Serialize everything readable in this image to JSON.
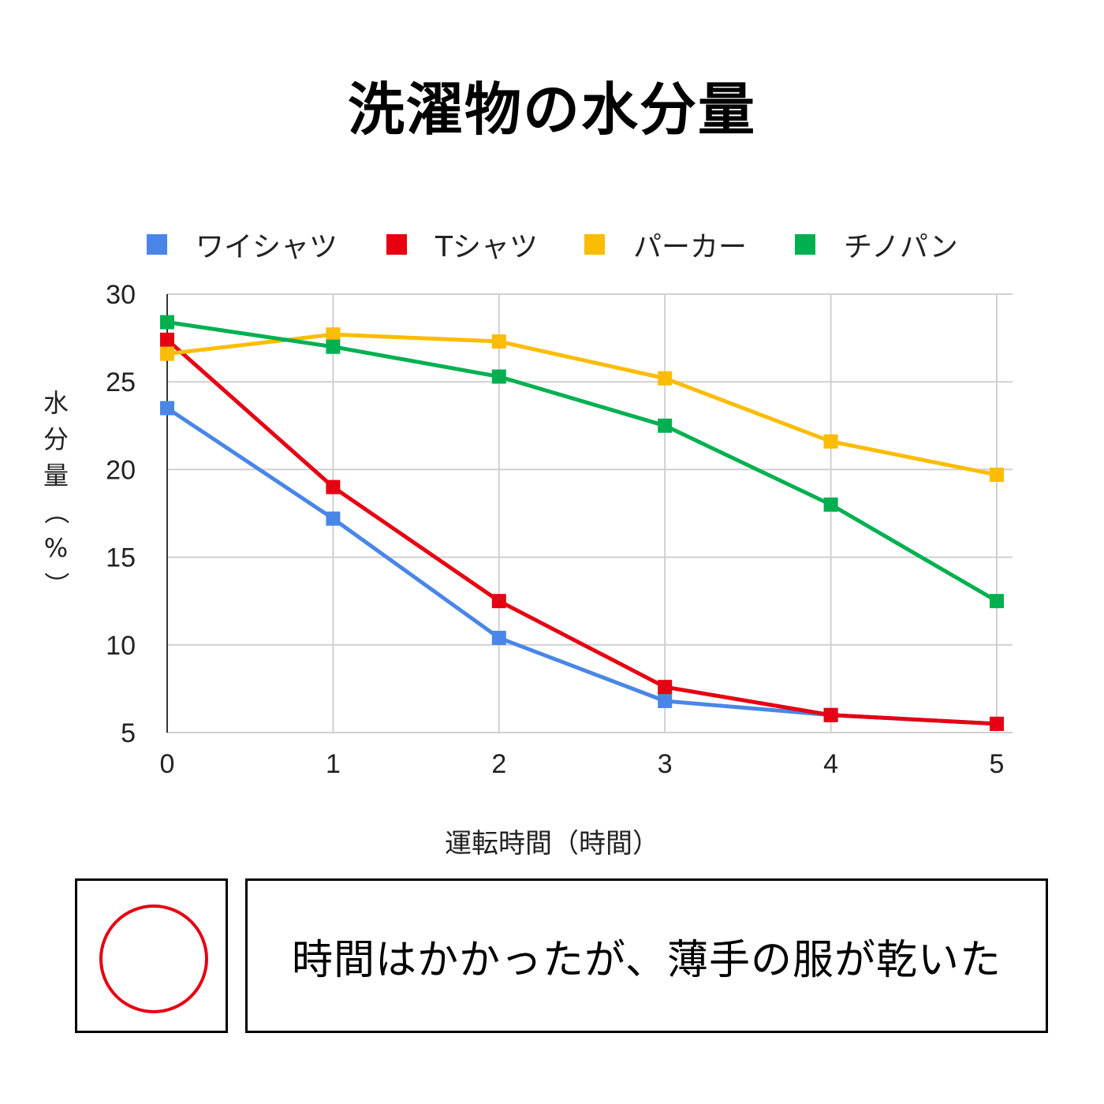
{
  "chart_data": {
    "type": "line",
    "title": "洗濯物の水分量",
    "xlabel": "運転時間（時間）",
    "ylabel": "水分量（%）",
    "x": [
      0,
      1,
      2,
      3,
      4,
      5
    ],
    "xlim": [
      0,
      5
    ],
    "ylim": [
      5,
      30
    ],
    "yticks": [
      5,
      10,
      15,
      20,
      25,
      30
    ],
    "grid": true,
    "legend_position": "top",
    "marker": "square",
    "series": [
      {
        "name": "ワイシャツ",
        "color": "#4a86e8",
        "values": [
          23.5,
          17.2,
          10.4,
          6.8,
          6.0,
          5.5
        ]
      },
      {
        "name": "Tシャツ",
        "color": "#e60012",
        "values": [
          27.4,
          19.0,
          12.5,
          7.6,
          6.0,
          5.5
        ]
      },
      {
        "name": "パーカー",
        "color": "#fbbc04",
        "values": [
          26.6,
          27.7,
          27.3,
          25.2,
          21.6,
          19.7
        ]
      },
      {
        "name": "チノパン",
        "color": "#00b050",
        "values": [
          28.4,
          27.0,
          25.3,
          22.5,
          18.0,
          12.5
        ]
      }
    ]
  },
  "annotation": {
    "mark_symbol": "circle",
    "mark_color": "#e60012",
    "comment": "時間はかかったが、薄手の服が乾いた"
  }
}
